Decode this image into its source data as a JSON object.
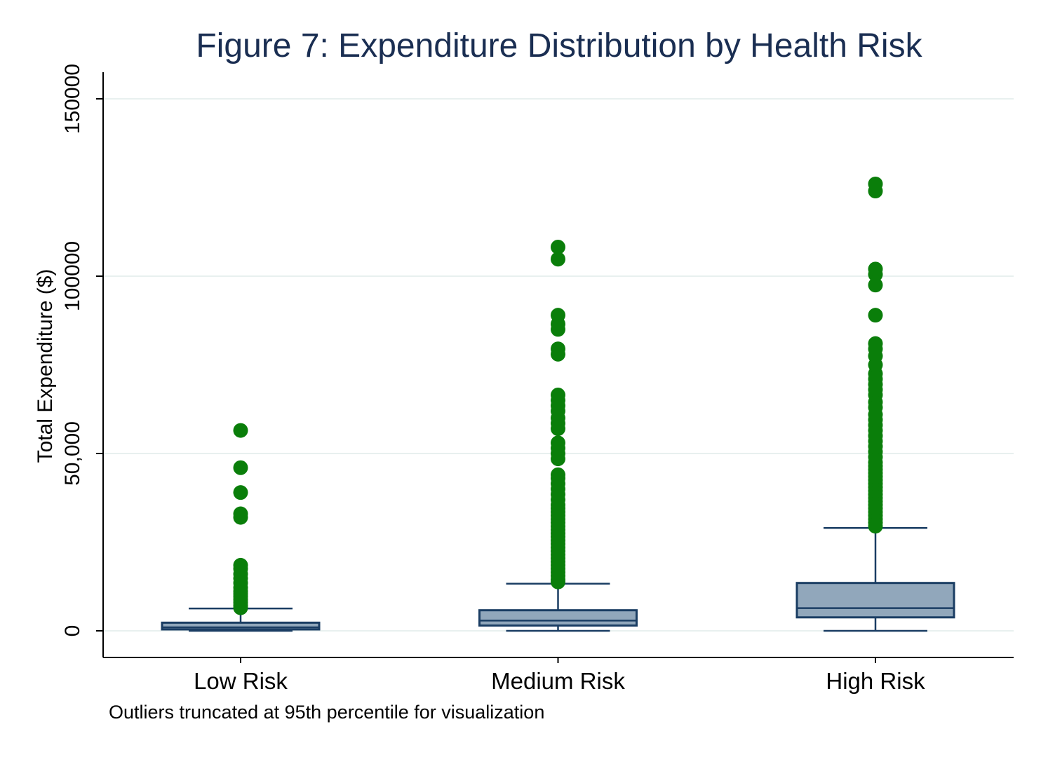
{
  "chart_data": {
    "type": "box",
    "title": "Figure 7: Expenditure Distribution by Health Risk",
    "ylabel": "Total Expenditure ($)",
    "xlabel": "",
    "note": "Outliers truncated at 95th percentile for visualization",
    "ylim": [
      -7500,
      157500
    ],
    "yticks": [
      {
        "value": 0,
        "label": "0"
      },
      {
        "value": 50000,
        "label": "50,000"
      },
      {
        "value": 100000,
        "label": "100000"
      },
      {
        "value": 150000,
        "label": "150000"
      }
    ],
    "grid": true,
    "categories": [
      "Low Risk",
      "Medium Risk",
      "High Risk"
    ],
    "boxes": [
      {
        "category": "Low Risk",
        "whisker_low": 0,
        "q1": 400,
        "median": 1000,
        "q3": 2300,
        "whisker_high": 6300,
        "outliers": [
          6500,
          7200,
          8000,
          8800,
          9600,
          10400,
          11200,
          12200,
          13500,
          14800,
          16000,
          17500,
          18500,
          32000,
          33000,
          39000,
          46000,
          56500
        ]
      },
      {
        "category": "Medium Risk",
        "whisker_low": 0,
        "q1": 1500,
        "median": 2900,
        "q3": 5800,
        "whisker_high": 13300,
        "outliers": [
          13800,
          14500,
          15500,
          16500,
          17500,
          18500,
          19500,
          20500,
          21500,
          22500,
          23500,
          24500,
          25500,
          26500,
          27500,
          28500,
          29500,
          30500,
          31500,
          32500,
          33500,
          34500,
          35500,
          37000,
          38500,
          40000,
          41500,
          43000,
          44000,
          48500,
          50000,
          51500,
          53000,
          57000,
          58500,
          60000,
          62000,
          63500,
          65000,
          66500,
          78000,
          79500,
          85000,
          86500,
          89000,
          104800,
          108200
        ]
      },
      {
        "category": "High Risk",
        "whisker_low": 0,
        "q1": 3800,
        "median": 6400,
        "q3": 13500,
        "whisker_high": 29000,
        "outliers": [
          29500,
          30500,
          31500,
          32500,
          33500,
          34500,
          35500,
          36500,
          37500,
          38500,
          39500,
          40500,
          41500,
          42500,
          43500,
          44500,
          45500,
          46500,
          47500,
          49000,
          50500,
          52000,
          53500,
          55000,
          56500,
          58000,
          59500,
          61000,
          63000,
          64500,
          66500,
          68000,
          69500,
          71000,
          72500,
          75000,
          77500,
          79500,
          81000,
          89000,
          97500,
          100500,
          102000,
          124000,
          126000
        ]
      }
    ],
    "colors": {
      "title": "#1a2e52",
      "box_fill": "#91a7bb",
      "box_stroke": "#1a3d63",
      "outlier": "#0a7e0a",
      "grid": "#e8f0ef",
      "axis": "#000000"
    }
  }
}
